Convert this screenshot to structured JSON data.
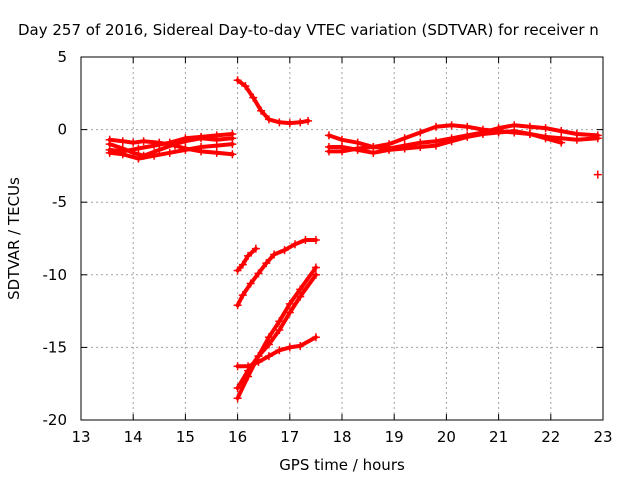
{
  "chart_data": {
    "type": "scatter",
    "title": "Day 257 of 2016, Sidereal Day-to-day VTEC variation (SDTVAR) for receiver n",
    "xlabel": "GPS time / hours",
    "ylabel": "SDTVAR / TECUs",
    "xlim": [
      13,
      23
    ],
    "ylim": [
      -20,
      5
    ],
    "x_ticks": [
      13,
      14,
      15,
      16,
      17,
      18,
      19,
      20,
      21,
      22,
      23
    ],
    "y_ticks": [
      -20,
      -15,
      -10,
      -5,
      0,
      5
    ],
    "grid": true,
    "legend": "none",
    "marker": "+",
    "color": "#ff0000",
    "series": [
      {
        "x": [
          13.55,
          13.8,
          14.0,
          14.2,
          14.5,
          14.8,
          15.0,
          15.3,
          15.6,
          15.9
        ],
        "y": [
          -1.0,
          -1.3,
          -1.6,
          -1.8,
          -1.4,
          -1.0,
          -0.8,
          -0.6,
          -0.7,
          -0.6
        ]
      },
      {
        "x": [
          13.55,
          13.8,
          14.0,
          14.2,
          14.5,
          14.8,
          15.0,
          15.3,
          15.6,
          15.9
        ],
        "y": [
          -0.7,
          -0.8,
          -0.9,
          -0.8,
          -0.9,
          -1.1,
          -1.3,
          -1.5,
          -1.6,
          -1.7
        ]
      },
      {
        "x": [
          13.55,
          13.8,
          14.1,
          14.4,
          14.7,
          15.0,
          15.3,
          15.6,
          15.9
        ],
        "y": [
          -1.4,
          -1.5,
          -1.3,
          -1.1,
          -0.9,
          -0.6,
          -0.5,
          -0.4,
          -0.3
        ]
      },
      {
        "x": [
          13.55,
          13.8,
          14.1,
          14.4,
          14.7,
          15.0,
          15.3,
          15.6,
          15.9
        ],
        "y": [
          -1.6,
          -1.7,
          -2.0,
          -1.8,
          -1.6,
          -1.4,
          -1.2,
          -1.1,
          -1.0
        ]
      },
      {
        "x": [
          16.0,
          16.15,
          16.3,
          16.45,
          16.6,
          16.8,
          17.0,
          17.2,
          17.35
        ],
        "y": [
          3.4,
          3.0,
          2.2,
          1.3,
          0.7,
          0.5,
          0.45,
          0.5,
          0.6
        ]
      },
      {
        "x": [
          16.0,
          16.1,
          16.2,
          16.35
        ],
        "y": [
          -9.7,
          -9.3,
          -8.7,
          -8.2
        ]
      },
      {
        "x": [
          16.0,
          16.1,
          16.25,
          16.4,
          16.55,
          16.7,
          16.9,
          17.1,
          17.3,
          17.5
        ],
        "y": [
          -12.1,
          -11.4,
          -10.6,
          -9.9,
          -9.2,
          -8.6,
          -8.3,
          -7.9,
          -7.6,
          -7.6
        ]
      },
      {
        "x": [
          16.0,
          16.2,
          16.4,
          16.6,
          16.8,
          17.0,
          17.2,
          17.5
        ],
        "y": [
          -18.5,
          -17.0,
          -15.6,
          -14.3,
          -13.2,
          -12.0,
          -11.0,
          -9.5
        ]
      },
      {
        "x": [
          16.0,
          16.2,
          16.4,
          16.6,
          16.8,
          17.0,
          17.2,
          17.5
        ],
        "y": [
          -17.8,
          -16.6,
          -15.6,
          -14.8,
          -13.8,
          -12.6,
          -11.5,
          -10.0
        ]
      },
      {
        "x": [
          16.0,
          16.2,
          16.4,
          16.6,
          16.8,
          17.0,
          17.2,
          17.5
        ],
        "y": [
          -16.3,
          -16.3,
          -16.0,
          -15.6,
          -15.2,
          -15.0,
          -14.9,
          -14.3
        ]
      },
      {
        "x": [
          17.75,
          18.0,
          18.3,
          18.6,
          18.9,
          19.2,
          19.5,
          19.8,
          20.1,
          20.4,
          20.7,
          21.0,
          21.3,
          21.6,
          21.9,
          22.2,
          22.5,
          22.9
        ],
        "y": [
          -0.4,
          -0.7,
          -0.9,
          -1.2,
          -1.0,
          -0.6,
          -0.2,
          0.2,
          0.3,
          0.2,
          0.0,
          -0.1,
          -0.2,
          -0.3,
          -0.5,
          -0.6,
          -0.7,
          -0.6
        ]
      },
      {
        "x": [
          17.75,
          18.0,
          18.3,
          18.6,
          18.9,
          19.2,
          19.5,
          19.8,
          20.1,
          20.4,
          20.7,
          21.0,
          21.3,
          21.6,
          21.9,
          22.2,
          22.5,
          22.9
        ],
        "y": [
          -1.5,
          -1.5,
          -1.3,
          -1.2,
          -1.3,
          -1.1,
          -0.9,
          -0.8,
          -0.6,
          -0.4,
          -0.2,
          0.1,
          0.3,
          0.2,
          0.1,
          -0.1,
          -0.3,
          -0.4
        ]
      },
      {
        "x": [
          17.75,
          18.0,
          18.3,
          18.6,
          18.9,
          19.2,
          19.5,
          19.8,
          20.1,
          20.4,
          20.7,
          21.0,
          21.3,
          21.6,
          21.9,
          22.2
        ],
        "y": [
          -1.2,
          -1.2,
          -1.4,
          -1.6,
          -1.4,
          -1.3,
          -1.2,
          -1.1,
          -0.8,
          -0.5,
          -0.3,
          -0.2,
          -0.1,
          -0.3,
          -0.6,
          -0.9
        ]
      },
      {
        "x": [
          22.9
        ],
        "y": [
          -3.1
        ]
      }
    ]
  }
}
